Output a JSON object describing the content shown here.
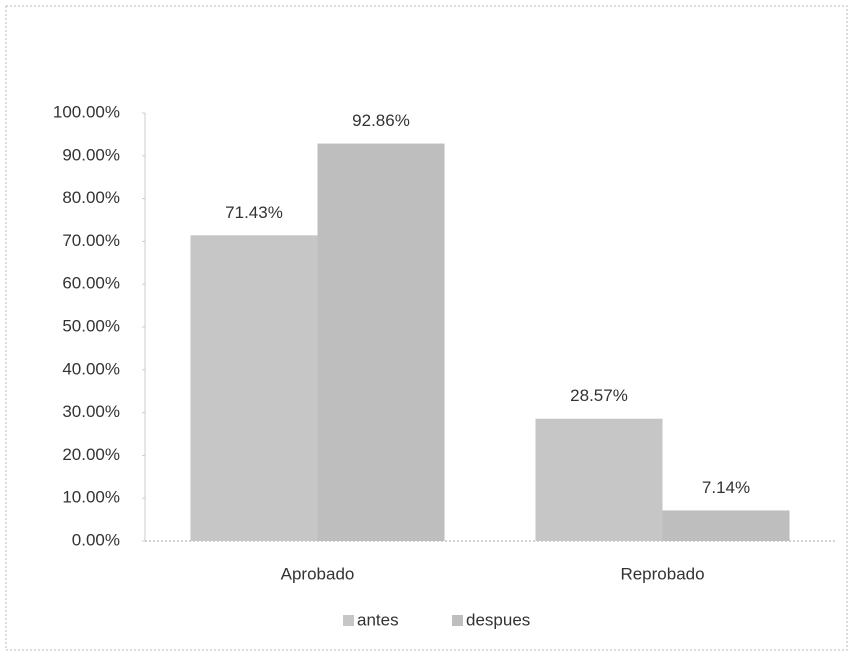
{
  "chart_data": {
    "type": "bar",
    "categories": [
      "Aprobado",
      "Reprobado"
    ],
    "series": [
      {
        "name": "antes",
        "color": "#c6c6c6",
        "values": [
          71.43,
          28.57
        ],
        "value_labels": [
          "71.43%",
          "28.57%"
        ]
      },
      {
        "name": "despues",
        "color": "#bebebe",
        "values": [
          92.86,
          7.14
        ],
        "value_labels": [
          "92.86%",
          "7.14%"
        ]
      }
    ],
    "ylim": [
      0,
      100
    ],
    "yticks": [
      {
        "value": 0,
        "label": "0.00%"
      },
      {
        "value": 10,
        "label": "10.00%"
      },
      {
        "value": 20,
        "label": "20.00%"
      },
      {
        "value": 30,
        "label": "30.00%"
      },
      {
        "value": 40,
        "label": "40.00%"
      },
      {
        "value": 50,
        "label": "50.00%"
      },
      {
        "value": 60,
        "label": "60.00%"
      },
      {
        "value": 70,
        "label": "70.00%"
      },
      {
        "value": 80,
        "label": "80.00%"
      },
      {
        "value": 90,
        "label": "90.00%"
      },
      {
        "value": 100,
        "label": "100.00%"
      }
    ],
    "legend": "bottom"
  }
}
